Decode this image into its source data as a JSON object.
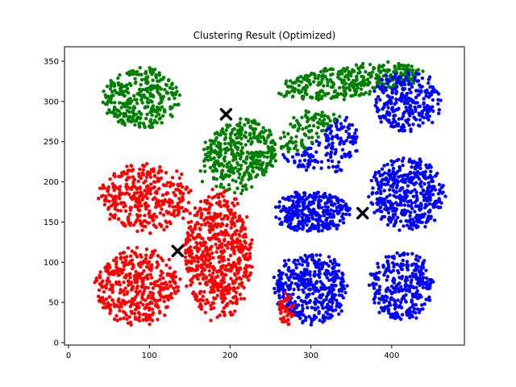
{
  "chart_data": {
    "type": "scatter",
    "title": "Clustering Result (Optimized)",
    "xlabel": "",
    "ylabel": "",
    "xlim": [
      -5,
      490
    ],
    "ylim": [
      -3,
      368
    ],
    "x_ticks": [
      0,
      100,
      200,
      300,
      400
    ],
    "y_ticks": [
      0,
      50,
      100,
      150,
      200,
      250,
      300,
      350
    ],
    "grid": false,
    "marker_radius_note": "small filled dots",
    "blobs": [
      {
        "cx": 90,
        "cy": 305,
        "rx": 50,
        "ry": 40,
        "color": "#008000",
        "n": 320
      },
      {
        "cx": 195,
        "cy": 207,
        "rx": 35,
        "ry": 17,
        "color": "#008000",
        "n": 60,
        "shape": "stripe"
      },
      {
        "cx": 350,
        "cy": 325,
        "rx": 95,
        "ry": 22,
        "color": "#008000",
        "n": 380,
        "slope": 0.12
      },
      {
        "cx": 215,
        "cy": 240,
        "rx": 48,
        "ry": 40,
        "color": "#008000",
        "n": 330
      },
      {
        "cx": 312,
        "cy": 250,
        "rx": 52,
        "ry": 42,
        "color": "#0000ff",
        "n": 260,
        "split": "green-top-left"
      },
      {
        "cx": 418,
        "cy": 300,
        "rx": 45,
        "ry": 40,
        "color": "#0000ff",
        "n": 260
      },
      {
        "cx": 96,
        "cy": 180,
        "rx": 60,
        "ry": 45,
        "color": "#ff0000",
        "n": 360
      },
      {
        "cx": 185,
        "cy": 110,
        "rx": 45,
        "ry": 85,
        "color": "#ff0000",
        "n": 620
      },
      {
        "cx": 85,
        "cy": 70,
        "rx": 55,
        "ry": 50,
        "color": "#ff0000",
        "n": 420
      },
      {
        "cx": 302,
        "cy": 163,
        "rx": 50,
        "ry": 28,
        "color": "#0000ff",
        "n": 330
      },
      {
        "cx": 418,
        "cy": 185,
        "rx": 50,
        "ry": 48,
        "color": "#0000ff",
        "n": 420
      },
      {
        "cx": 300,
        "cy": 68,
        "rx": 48,
        "ry": 48,
        "color": "#0000ff",
        "n": 430
      },
      {
        "cx": 270,
        "cy": 42,
        "rx": 10,
        "ry": 22,
        "color": "#ff0000",
        "n": 45
      },
      {
        "cx": 412,
        "cy": 70,
        "rx": 42,
        "ry": 45,
        "color": "#0000ff",
        "n": 320
      }
    ],
    "centroids": [
      {
        "x": 195,
        "y": 284
      },
      {
        "x": 135,
        "y": 114
      },
      {
        "x": 364,
        "y": 161
      }
    ],
    "centroid_marker": "x",
    "centroid_color": "#000000",
    "colors": {
      "cluster_green": "#008000",
      "cluster_red": "#ff0000",
      "cluster_blue": "#0000ff",
      "centroid": "#000000"
    }
  }
}
